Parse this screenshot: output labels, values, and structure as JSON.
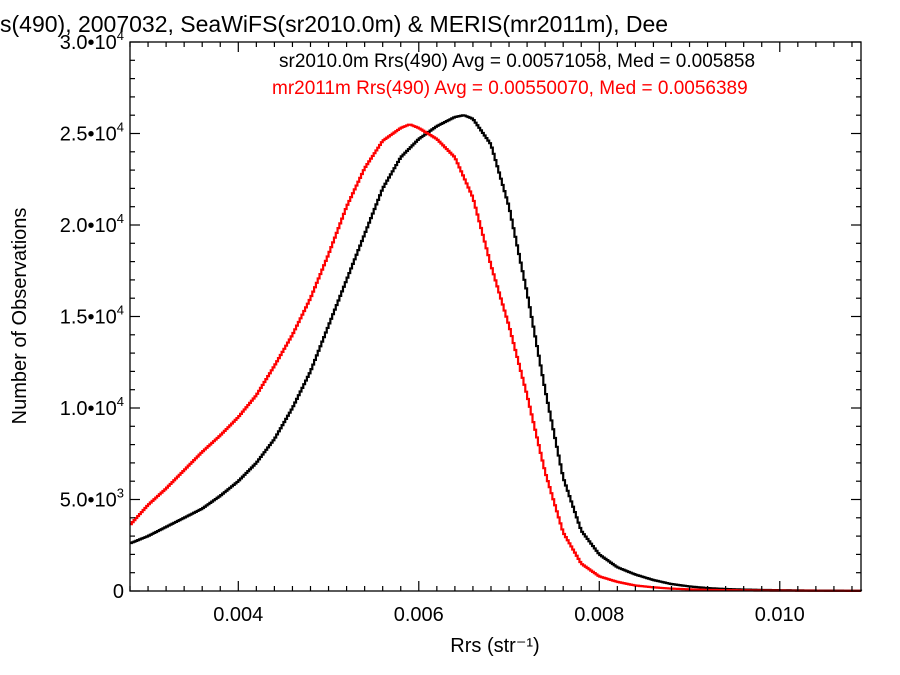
{
  "chart_data": {
    "type": "line",
    "title": "s(490), 2007032, SeaWiFS(sr2010.0m) & MERIS(mr2011m), Dee",
    "xlabel": "Rrs (str⁻¹)",
    "ylabel": "Number of Observations",
    "xlim": [
      0.0028,
      0.0109
    ],
    "ylim": [
      0,
      30000
    ],
    "step": "steps-mid",
    "grid": false,
    "legend_position": "top-right",
    "x_ticks": [
      {
        "value": 0.004,
        "label": "0.004"
      },
      {
        "value": 0.006,
        "label": "0.006"
      },
      {
        "value": 0.008,
        "label": "0.008"
      },
      {
        "value": 0.01,
        "label": "0.010"
      }
    ],
    "y_ticks": [
      {
        "value": 0,
        "label": "0"
      },
      {
        "value": 5000,
        "label": "5.0•",
        "exp": "3"
      },
      {
        "value": 10000,
        "label": "1.0•",
        "exp": "4"
      },
      {
        "value": 15000,
        "label": "1.5•",
        "exp": "4"
      },
      {
        "value": 20000,
        "label": "2.0•",
        "exp": "4"
      },
      {
        "value": 25000,
        "label": "2.5•",
        "exp": "4"
      },
      {
        "value": 30000,
        "label": "3.0•",
        "exp": "4"
      }
    ],
    "annotations": [
      {
        "text": "sr2010.0m Rrs(490) Avg = 0.00571058, Med = 0.005858",
        "color": "#000000"
      },
      {
        "text": "mr2011m Rrs(490) Avg = 0.00550070, Med = 0.0056389",
        "color": "#ff0000"
      }
    ],
    "series": [
      {
        "color": "#000000",
        "points": [
          [
            0.0028,
            2600
          ],
          [
            0.003,
            3000
          ],
          [
            0.0032,
            3500
          ],
          [
            0.0034,
            4000
          ],
          [
            0.0036,
            4500
          ],
          [
            0.0038,
            5200
          ],
          [
            0.004,
            6000
          ],
          [
            0.0042,
            7000
          ],
          [
            0.0044,
            8300
          ],
          [
            0.0046,
            10000
          ],
          [
            0.0048,
            12000
          ],
          [
            0.005,
            14500
          ],
          [
            0.0052,
            17000
          ],
          [
            0.0054,
            19500
          ],
          [
            0.0056,
            22000
          ],
          [
            0.0058,
            23700
          ],
          [
            0.006,
            24700
          ],
          [
            0.0062,
            25400
          ],
          [
            0.0064,
            25900
          ],
          [
            0.0065,
            26000
          ],
          [
            0.0066,
            25800
          ],
          [
            0.0068,
            24400
          ],
          [
            0.007,
            21000
          ],
          [
            0.0072,
            16300
          ],
          [
            0.0074,
            11000
          ],
          [
            0.0076,
            6200
          ],
          [
            0.0078,
            3300
          ],
          [
            0.008,
            2000
          ],
          [
            0.0082,
            1300
          ],
          [
            0.0084,
            900
          ],
          [
            0.0086,
            600
          ],
          [
            0.0088,
            380
          ],
          [
            0.009,
            250
          ],
          [
            0.0092,
            160
          ],
          [
            0.0094,
            110
          ],
          [
            0.0096,
            80
          ],
          [
            0.0098,
            60
          ],
          [
            0.01,
            45
          ],
          [
            0.0102,
            35
          ],
          [
            0.0104,
            25
          ],
          [
            0.0106,
            20
          ],
          [
            0.0109,
            15
          ]
        ]
      },
      {
        "color": "#ff0000",
        "points": [
          [
            0.0028,
            3600
          ],
          [
            0.003,
            4700
          ],
          [
            0.0032,
            5600
          ],
          [
            0.0034,
            6600
          ],
          [
            0.0036,
            7600
          ],
          [
            0.0038,
            8500
          ],
          [
            0.004,
            9500
          ],
          [
            0.0042,
            10700
          ],
          [
            0.0044,
            12300
          ],
          [
            0.0046,
            14000
          ],
          [
            0.0048,
            16000
          ],
          [
            0.005,
            18400
          ],
          [
            0.0052,
            21000
          ],
          [
            0.0054,
            23100
          ],
          [
            0.0056,
            24600
          ],
          [
            0.0058,
            25300
          ],
          [
            0.0059,
            25500
          ],
          [
            0.006,
            25300
          ],
          [
            0.0062,
            24700
          ],
          [
            0.0064,
            23700
          ],
          [
            0.0066,
            21500
          ],
          [
            0.0068,
            17800
          ],
          [
            0.007,
            14500
          ],
          [
            0.0072,
            10700
          ],
          [
            0.0074,
            6500
          ],
          [
            0.0076,
            3200
          ],
          [
            0.0078,
            1500
          ],
          [
            0.008,
            800
          ],
          [
            0.0082,
            500
          ],
          [
            0.0084,
            300
          ],
          [
            0.0086,
            200
          ],
          [
            0.0088,
            130
          ],
          [
            0.009,
            90
          ],
          [
            0.0092,
            60
          ],
          [
            0.0094,
            45
          ],
          [
            0.0096,
            35
          ],
          [
            0.0098,
            25
          ],
          [
            0.01,
            20
          ],
          [
            0.0102,
            15
          ],
          [
            0.0104,
            12
          ],
          [
            0.0106,
            10
          ],
          [
            0.0109,
            8
          ]
        ]
      }
    ]
  }
}
